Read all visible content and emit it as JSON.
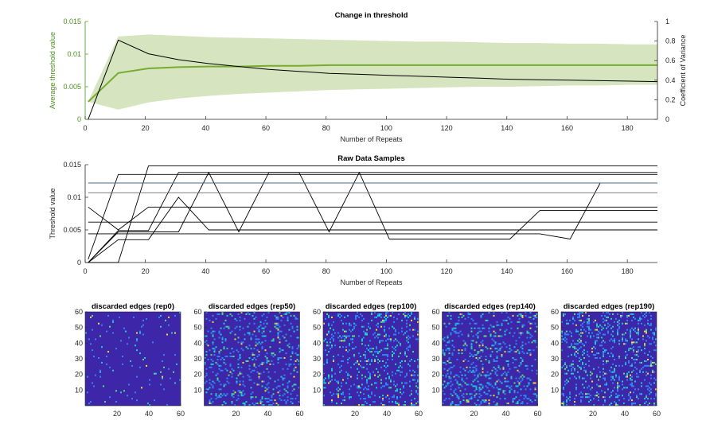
{
  "chart_data": [
    {
      "type": "line",
      "title": "Change in threshold",
      "xlabel": "Number of Repeats",
      "ylabel": "Average threshold value",
      "ylabel_right": "Coefficient of Variance",
      "xlim": [
        0,
        190
      ],
      "ylim": [
        0,
        0.015
      ],
      "ylim_right": [
        0,
        1
      ],
      "xticks": [
        "0",
        "20",
        "40",
        "60",
        "80",
        "100",
        "120",
        "140",
        "160",
        "180"
      ],
      "yticks": [
        "0",
        "0.005",
        "0.01",
        "0.015"
      ],
      "yticks_right": [
        "0",
        "0.2",
        "0.4",
        "0.6",
        "0.8",
        "1"
      ],
      "grid": false,
      "colors": {
        "mean": "#77ac30",
        "band": "#d6e4bf",
        "cv": "#000000",
        "left_axis": "#4d8f1f"
      },
      "x": [
        1,
        11,
        21,
        31,
        41,
        51,
        61,
        71,
        81,
        91,
        101,
        111,
        121,
        131,
        141,
        151,
        161,
        171,
        181,
        191
      ],
      "series": [
        {
          "axis": "left",
          "values": [
            0.0027,
            0.0071,
            0.0078,
            0.008,
            0.0081,
            0.0081,
            0.0082,
            0.0082,
            0.0083,
            0.0083,
            0.0083,
            0.0083,
            0.0083,
            0.0083,
            0.0083,
            0.0083,
            0.0083,
            0.0083,
            0.0083,
            0.0083
          ]
        },
        {
          "axis": "left",
          "band": true,
          "lower": [
            0.0027,
            0.0015,
            0.0026,
            0.0032,
            0.0036,
            0.0039,
            0.0041,
            0.0043,
            0.0045,
            0.0046,
            0.0047,
            0.0048,
            0.0049,
            0.005,
            0.005,
            0.0051,
            0.0052,
            0.0052,
            0.0053,
            0.0053
          ],
          "upper": [
            0.0027,
            0.0127,
            0.013,
            0.0128,
            0.0126,
            0.0125,
            0.0124,
            0.0123,
            0.0122,
            0.0121,
            0.012,
            0.0119,
            0.0119,
            0.0118,
            0.0117,
            0.0117,
            0.0116,
            0.0116,
            0.0115,
            0.0115
          ]
        },
        {
          "axis": "right",
          "values": [
            0,
            0.81,
            0.67,
            0.61,
            0.57,
            0.54,
            0.51,
            0.49,
            0.47,
            0.46,
            0.45,
            0.44,
            0.43,
            0.42,
            0.41,
            0.405,
            0.4,
            0.395,
            0.39,
            0.385
          ]
        }
      ]
    },
    {
      "type": "line",
      "title": "Raw Data Samples",
      "xlabel": "Number of Repeats",
      "ylabel": "Threshold value",
      "xlim": [
        0,
        190
      ],
      "ylim": [
        0,
        0.015
      ],
      "xticks": [
        "0",
        "20",
        "40",
        "60",
        "80",
        "100",
        "120",
        "140",
        "160",
        "180"
      ],
      "yticks": [
        "0",
        "0.005",
        "0.01",
        "0.015"
      ],
      "grid": false,
      "x": [
        1,
        11,
        21,
        31,
        41,
        51,
        61,
        71,
        81,
        91,
        101,
        111,
        121,
        131,
        141,
        151,
        161,
        171,
        181,
        191
      ],
      "series": [
        {
          "values": [
            0.0005,
            0.0135,
            0.0135,
            0.0135,
            0.0135,
            0.0135,
            0.0135,
            0.0135,
            0.0135,
            0.0135,
            0.0135,
            0.0135,
            0.0135,
            0.0135,
            0.0135,
            0.0135,
            0.0135,
            0.0135,
            0.0135,
            0.0135
          ]
        },
        {
          "values": [
            0,
            0,
            0.0148,
            0.0148,
            0.0148,
            0.0148,
            0.0148,
            0.0148,
            0.0148,
            0.0148,
            0.0148,
            0.0148,
            0.0148,
            0.0148,
            0.0148,
            0.0148,
            0.0148,
            0.0148,
            0.0148,
            0.0148
          ]
        },
        {
          "values": [
            0,
            0.0049,
            0.0049,
            0.0138,
            0.0138,
            0.0138,
            0.0138,
            0.0138,
            0.0138,
            0.0138,
            0.0138,
            0.0138,
            0.0138,
            0.0138,
            0.0138,
            0.0138,
            0.0138,
            0.0138,
            0.0138,
            0.0138
          ]
        },
        {
          "values": [
            0.0085,
            0.005,
            0.0085,
            0.0085,
            0.0085,
            0.0085,
            0.0085,
            0.0085,
            0.0085,
            0.0085,
            0.0085,
            0.0085,
            0.0085,
            0.0085,
            0.0085,
            0.0085,
            0.0085,
            0.0085,
            0.0085,
            0.0085
          ]
        },
        {
          "values": [
            0.0062,
            0.0062,
            0.0062,
            0.0062,
            0.0062,
            0.0062,
            0.0062,
            0.0062,
            0.0062,
            0.0062,
            0.0062,
            0.0062,
            0.0062,
            0.0062,
            0.0062,
            0.0062,
            0.0062,
            0.0062,
            0.0062,
            0.0062
          ]
        },
        {
          "values": [
            0,
            0.0035,
            0.0035,
            0.01,
            0.005,
            0.005,
            0.005,
            0.005,
            0.005,
            0.005,
            0.005,
            0.005,
            0.005,
            0.005,
            0.005,
            0.005,
            0.005,
            0.005,
            0.005,
            0.005
          ]
        },
        {
          "values": [
            0,
            0.0047,
            0.0047,
            0.0047,
            0.0138,
            0.0047,
            0.0138,
            0.0138,
            0.0047,
            0.0138,
            0.0036,
            0.0036,
            0.0036,
            0.0036,
            0.0036,
            0.008,
            0.008,
            0.008,
            0.008,
            0.008
          ]
        },
        {
          "values": [
            0.0044,
            0.0044,
            0.0044,
            0.0044,
            0.0044,
            0.0044,
            0.0044,
            0.0044,
            0.0044,
            0.0044,
            0.0044,
            0.0044,
            0.0044,
            0.0044,
            0.0044,
            0.0044,
            0.0036,
            0.0122,
            0.0122,
            0.0122
          ]
        },
        {
          "values": [
            0.0122,
            0.0122,
            0.0122,
            0.0122,
            0.0122,
            0.0122,
            0.0122,
            0.0122,
            0.0122,
            0.0122,
            0.0122,
            0.0122,
            0.0122,
            0.0122,
            0.0122,
            0.0122,
            0.0122,
            0.0122,
            0.0122,
            0.0122
          ],
          "color": "#4a6a86"
        },
        {
          "values": [
            0.0107,
            0.0107,
            0.0107,
            0.0107,
            0.0107,
            0.0107,
            0.0107,
            0.0107,
            0.0107,
            0.0107,
            0.0107,
            0.0107,
            0.0107,
            0.0107,
            0.0107,
            0.0107,
            0.0107,
            0.0107,
            0.0107,
            0.0107
          ],
          "color": "#6e6e6e"
        }
      ]
    },
    {
      "type": "heatmap",
      "title": "discarded edges (rep0)",
      "xlim": [
        0,
        60
      ],
      "ylim": [
        0,
        60
      ],
      "xticks": [
        "20",
        "40",
        "60"
      ],
      "yticks": [
        "10",
        "20",
        "30",
        "40",
        "50",
        "60"
      ],
      "density": 0.03
    },
    {
      "type": "heatmap",
      "title": "discarded edges (rep50)",
      "xlim": [
        0,
        60
      ],
      "ylim": [
        0,
        60
      ],
      "xticks": [
        "20",
        "40",
        "60"
      ],
      "yticks": [
        "10",
        "20",
        "30",
        "40",
        "50",
        "60"
      ],
      "density": 0.16
    },
    {
      "type": "heatmap",
      "title": "discarded edges (rep100)",
      "xlim": [
        0,
        60
      ],
      "ylim": [
        0,
        60
      ],
      "xticks": [
        "20",
        "40",
        "60"
      ],
      "yticks": [
        "10",
        "20",
        "30",
        "40",
        "50",
        "60"
      ],
      "density": 0.17
    },
    {
      "type": "heatmap",
      "title": "discarded edges (rep140)",
      "xlim": [
        0,
        60
      ],
      "ylim": [
        0,
        60
      ],
      "xticks": [
        "20",
        "40",
        "60"
      ],
      "yticks": [
        "10",
        "20",
        "30",
        "40",
        "50",
        "60"
      ],
      "density": 0.17
    },
    {
      "type": "heatmap",
      "title": "discarded edges (rep190)",
      "xlim": [
        0,
        60
      ],
      "ylim": [
        0,
        60
      ],
      "xticks": [
        "20",
        "40",
        "60"
      ],
      "yticks": [
        "10",
        "20",
        "30",
        "40",
        "50",
        "60"
      ],
      "density": 0.17
    }
  ]
}
